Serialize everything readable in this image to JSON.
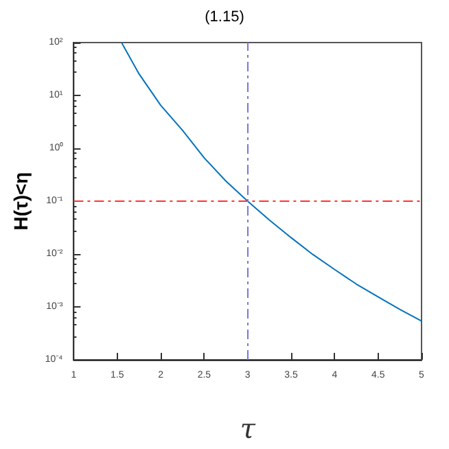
{
  "chart_data": {
    "type": "line",
    "title": "(1.15)",
    "xlabel": "τ",
    "ylabel": "H(τ)<η",
    "x": [
      1.55,
      1.75,
      2,
      2.25,
      2.5,
      2.75,
      3,
      3.25,
      3.5,
      3.75,
      4,
      4.25,
      4.5,
      4.75,
      5
    ],
    "series": [
      {
        "color": "#0072bd",
        "values": [
          100,
          25.7,
          6.5,
          2.2,
          0.66,
          0.24,
          0.1,
          0.044,
          0.0204,
          0.0098,
          0.0051,
          0.0027,
          0.00155,
          0.0009,
          0.00054
        ]
      }
    ],
    "xlim": [
      1,
      5
    ],
    "xticks": [
      1,
      1.5,
      2,
      2.5,
      3,
      3.5,
      4,
      4.5,
      5
    ],
    "ylim": [
      0.0001,
      100
    ],
    "log": "y",
    "yticks": [
      {
        "value": 0.0001,
        "label": "10⁻⁴"
      },
      {
        "value": 0.001,
        "label": "10⁻³"
      },
      {
        "value": 0.01,
        "label": "10⁻²"
      },
      {
        "value": 0.1,
        "label": "10⁻¹"
      },
      {
        "value": 1,
        "label": "10⁰"
      },
      {
        "value": 10,
        "label": "10¹"
      },
      {
        "value": 100,
        "label": "10²"
      }
    ],
    "ref_lines": [
      {
        "axis": "y",
        "value": 0.1,
        "color": "#ff3333",
        "line_style": "dashed"
      },
      {
        "axis": "x",
        "value": 3,
        "color": "#7777dd",
        "line_style": "dashed"
      }
    ],
    "grid": false,
    "legend": false,
    "marker": "none",
    "line_style": "solid"
  }
}
